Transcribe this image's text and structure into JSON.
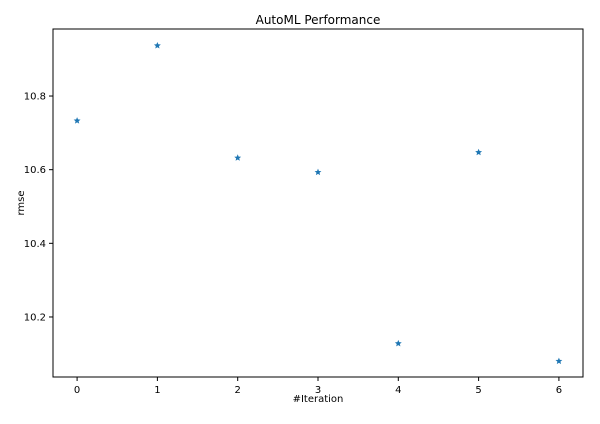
{
  "chart_data": {
    "type": "scatter",
    "title": "AutoML Performance",
    "xlabel": "#Iteration",
    "ylabel": "rmse",
    "x": [
      0,
      1,
      2,
      3,
      4,
      5,
      6
    ],
    "y": [
      10.733,
      10.937,
      10.632,
      10.593,
      10.128,
      10.647,
      10.08
    ],
    "xlim": [
      -0.3,
      6.3
    ],
    "ylim": [
      10.037,
      10.982
    ],
    "xticks": [
      "0",
      "1",
      "2",
      "3",
      "4",
      "5",
      "6"
    ],
    "yticks": [
      "10.2",
      "10.4",
      "10.6",
      "10.8"
    ],
    "marker": "star",
    "color": "#1f77b4",
    "grid": false,
    "legend": "none"
  }
}
